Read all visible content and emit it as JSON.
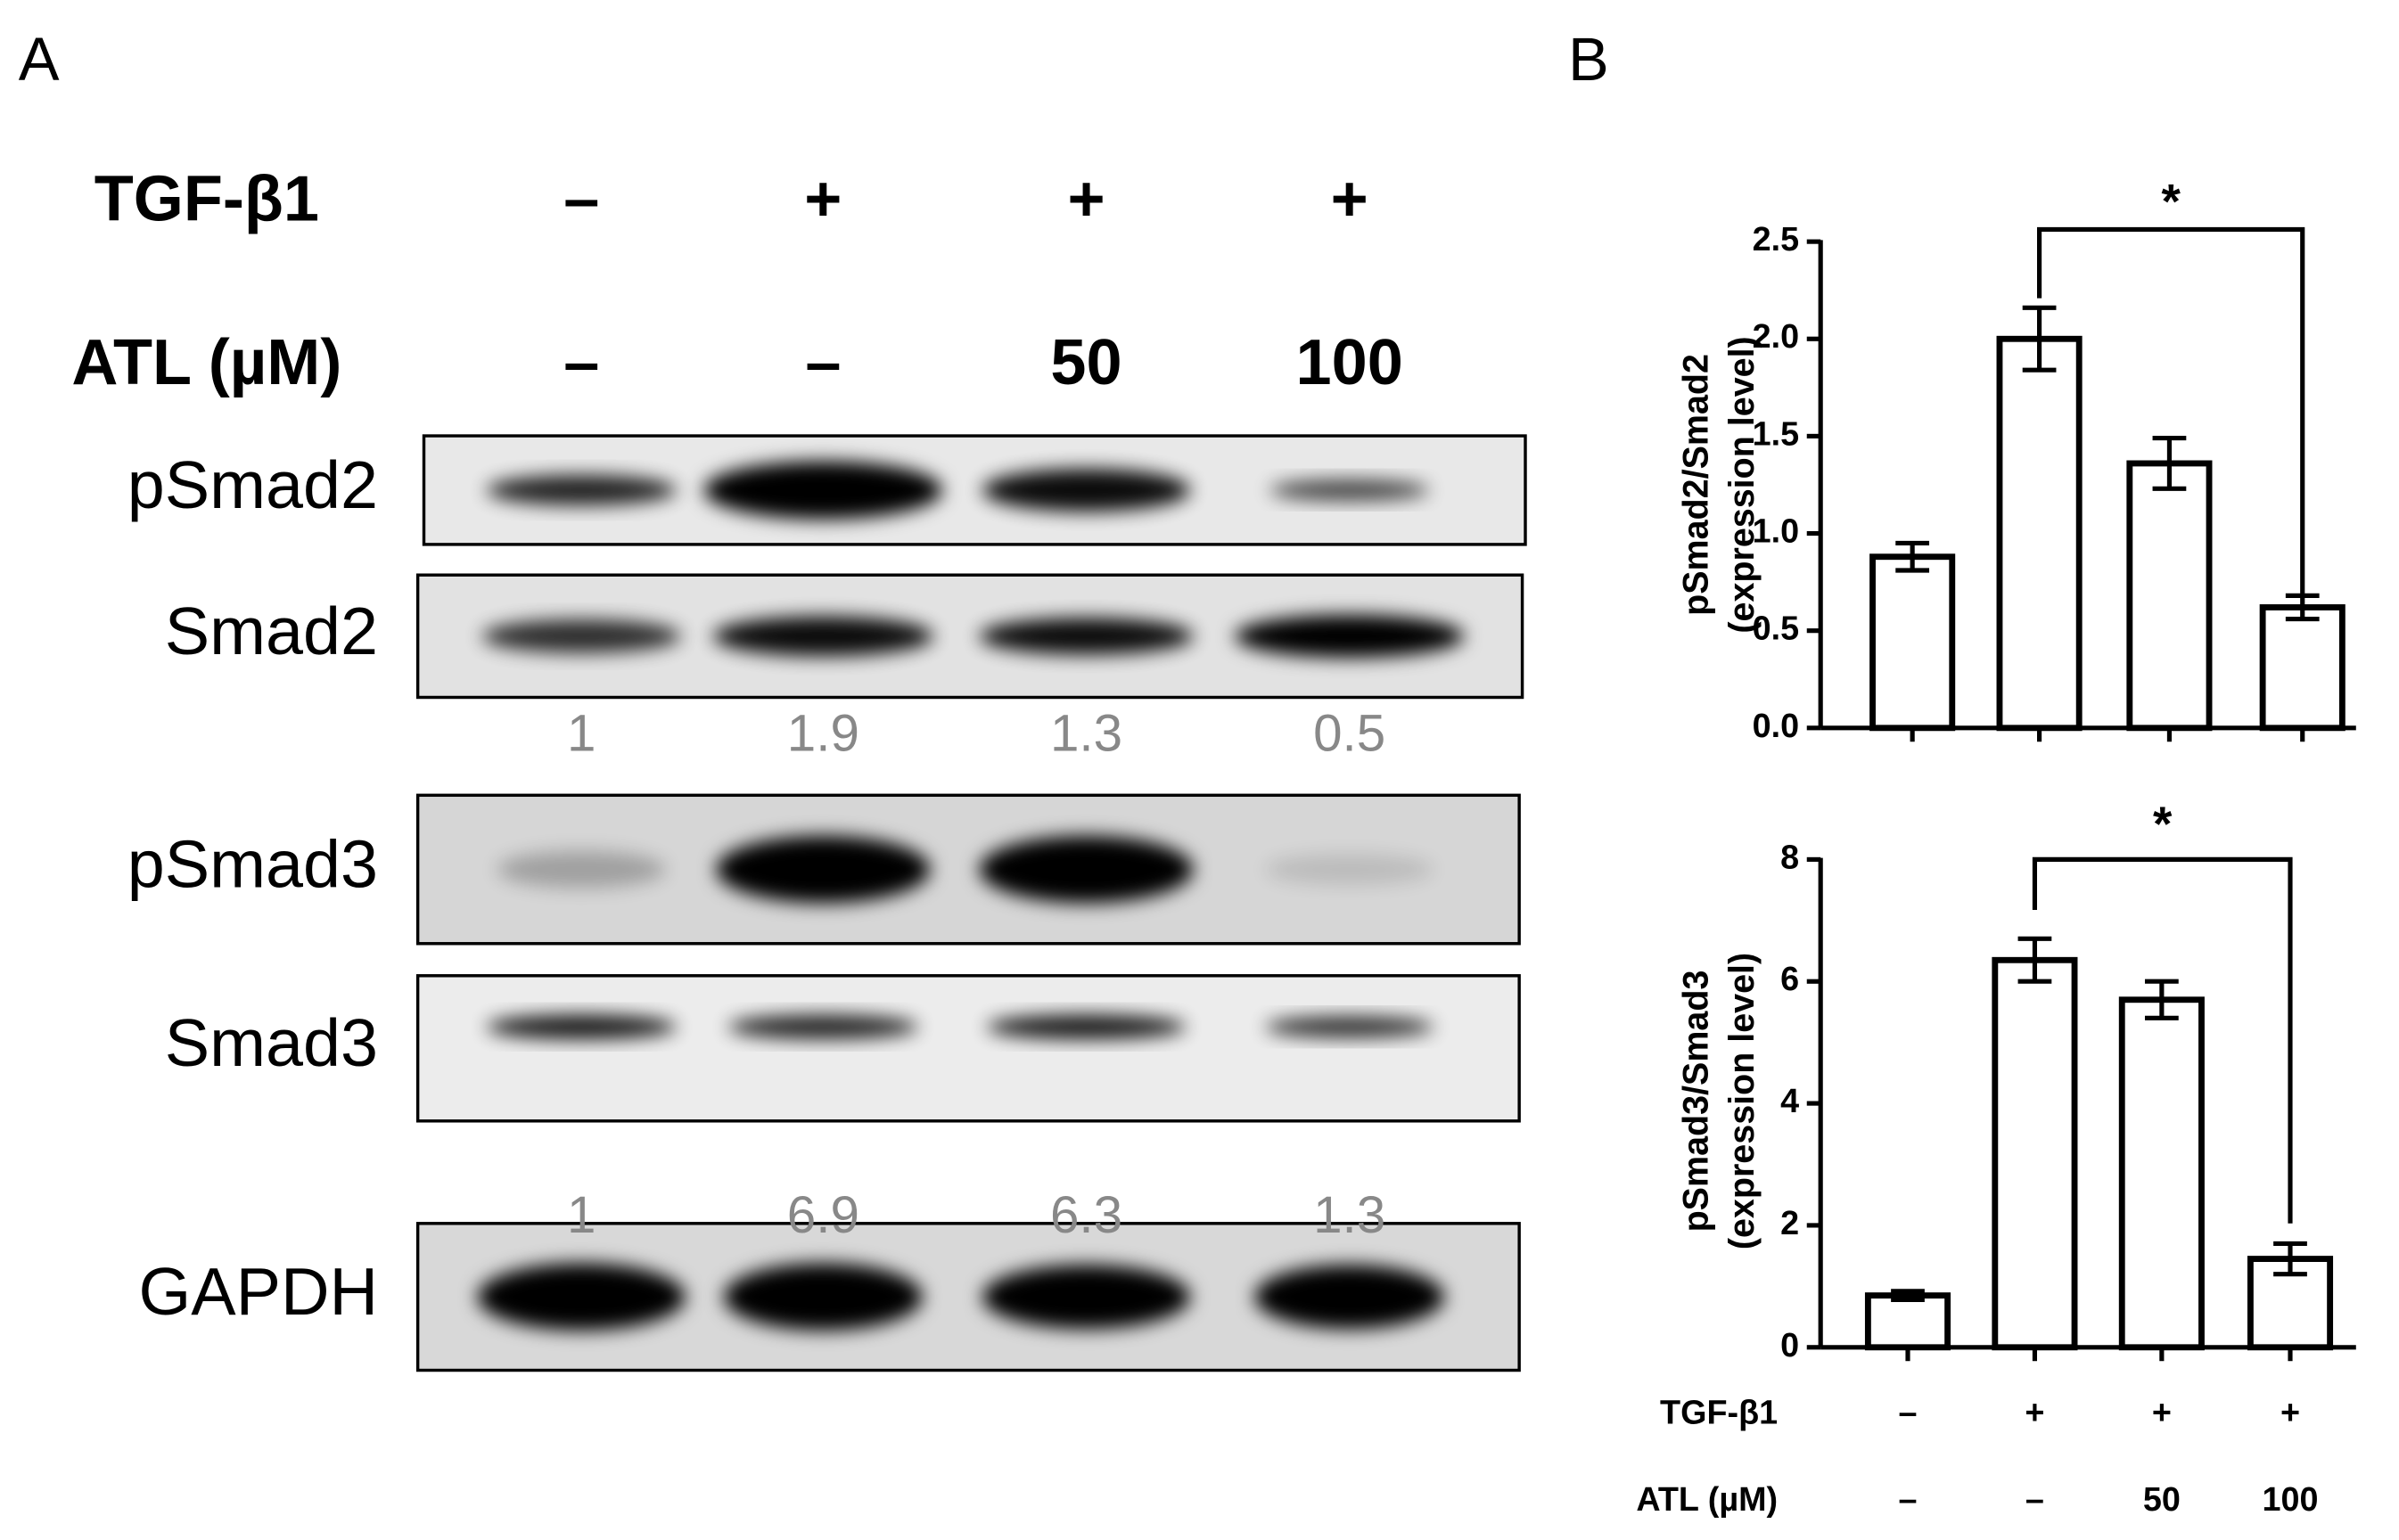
{
  "panel_labels": [
    "A",
    "B"
  ],
  "treatments": [
    {
      "label": "TGF-β1",
      "values": [
        "–",
        "+",
        "+",
        "+"
      ]
    },
    {
      "label": "ATL (µM)",
      "values": [
        "–",
        "–",
        "50",
        "100"
      ]
    }
  ],
  "blots": [
    "pSmad2",
    "Smad2",
    "pSmad3",
    "Smad3",
    "GAPDH"
  ],
  "ratios": [
    [
      1,
      1.9,
      1.3,
      0.5
    ],
    [
      1,
      6.9,
      6.3,
      1.3
    ]
  ],
  "chart_data": [
    {
      "type": "bar",
      "ylabel": [
        "pSmad2/Smad2",
        "(expression level)"
      ],
      "values": [
        0.88,
        2.0,
        1.36,
        0.62
      ],
      "errors": [
        0.07,
        0.16,
        0.13,
        0.06
      ],
      "color": "#ffffff",
      "edgecolor": "#000000",
      "ylim": [
        0,
        2.5
      ],
      "yticks": [
        {
          "value": 0,
          "label": "0.0"
        },
        0.5,
        {
          "value": 1,
          "label": "1.0"
        },
        1.5,
        {
          "value": 2,
          "label": "2.0"
        },
        2.5
      ],
      "significance": "*"
    },
    {
      "type": "bar",
      "ylabel": [
        "pSmad3/Smad3",
        "(expression level)"
      ],
      "values": [
        0.85,
        6.35,
        5.7,
        1.45
      ],
      "errors": [
        0.07,
        0.35,
        0.3,
        0.25
      ],
      "color": "#ffffff",
      "edgecolor": "#000000",
      "ylim": [
        0,
        8
      ],
      "yticks": [
        0,
        2,
        4,
        6,
        8
      ],
      "significance": "*"
    }
  ]
}
